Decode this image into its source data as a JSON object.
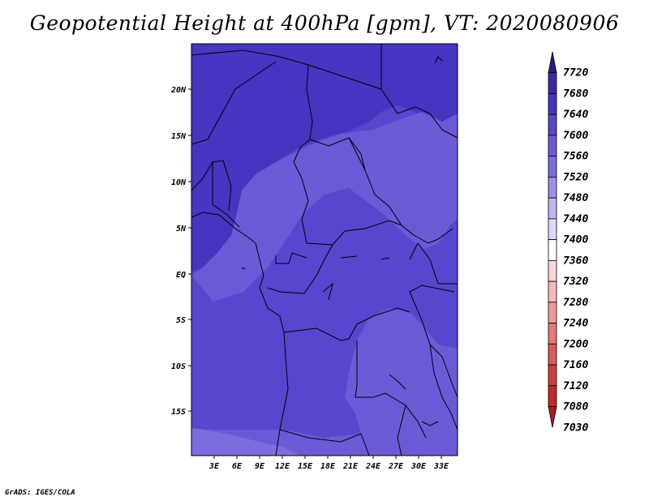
{
  "title": "Geopotential Height at 400hPa [gpm], VT: 2020080906",
  "footer": "GrADS: IGES/COLA",
  "map": {
    "lat_labels": [
      "20N",
      "15N",
      "10N",
      "5N",
      "EQ",
      "5S",
      "10S",
      "15S"
    ],
    "lon_labels": [
      "3E",
      "6E",
      "9E",
      "12E",
      "15E",
      "18E",
      "21E",
      "24E",
      "27E",
      "30E",
      "33E"
    ]
  },
  "colorbar": {
    "labels": [
      "7720",
      "7680",
      "7640",
      "7600",
      "7560",
      "7520",
      "7480",
      "7440",
      "7400",
      "7360",
      "7320",
      "7280",
      "7240",
      "7200",
      "7160",
      "7120",
      "7080",
      "7030"
    ],
    "colors": [
      "#2a1a8a",
      "#3a2aa8",
      "#4535c0",
      "#5747cf",
      "#6a5ad6",
      "#7a6de0",
      "#9a8fea",
      "#bcb5f2",
      "#dcd8f8",
      "#ffffff",
      "#fbd8d8",
      "#f6b9b9",
      "#ef9a9a",
      "#e57878",
      "#dc5a5a",
      "#cf3e3e",
      "#bf2a2a",
      "#a81e1e"
    ]
  }
}
